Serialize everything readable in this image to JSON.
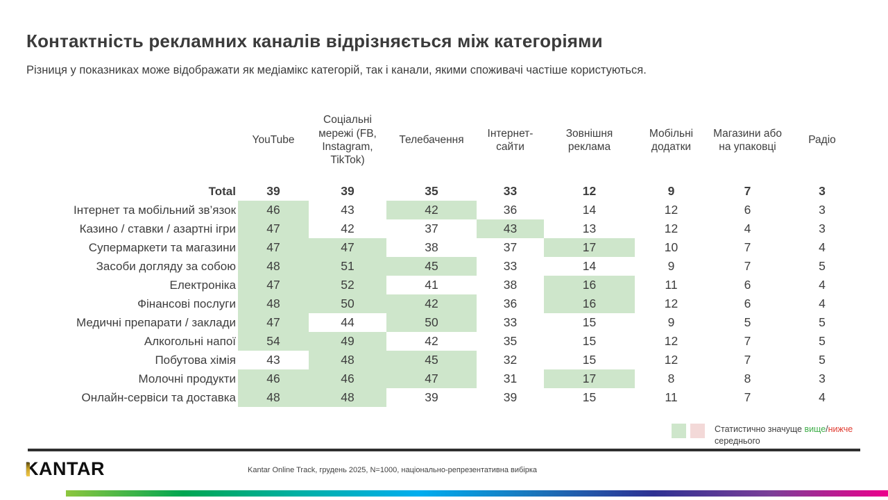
{
  "slide": {
    "title": "Контактність рекламних каналів відрізняється між категоріями",
    "subtitle": "Різниця у показниках може відображати як медіамікс категорій, так і канали, якими споживачі частіше користуються."
  },
  "chart_data": {
    "type": "table",
    "title": "Контактність рекламних каналів відрізняється між категоріями",
    "columns": [
      "YouTube",
      "Соціальні мережі (FB, Instagram, TikTok)",
      "Телебачення",
      "Інтернет-сайти",
      "Зовнішня реклама",
      "Мобільні додатки",
      "Магазини або на упаковці",
      "Радіо"
    ],
    "highlight_note": "1 = клітинка виділена зеленим (статистично значуще вище середнього)",
    "rows": [
      {
        "label": "Total",
        "bold": true,
        "values": [
          39,
          39,
          35,
          33,
          12,
          9,
          7,
          3
        ],
        "highlight": [
          0,
          0,
          0,
          0,
          0,
          0,
          0,
          0
        ]
      },
      {
        "label": "Інтернет та мобільний зв’язок",
        "bold": false,
        "values": [
          46,
          43,
          42,
          36,
          14,
          12,
          6,
          3
        ],
        "highlight": [
          1,
          0,
          1,
          0,
          0,
          0,
          0,
          0
        ]
      },
      {
        "label": "Казино / ставки / азартні ігри",
        "bold": false,
        "values": [
          47,
          42,
          37,
          43,
          13,
          12,
          4,
          3
        ],
        "highlight": [
          1,
          0,
          0,
          1,
          0,
          0,
          0,
          0
        ]
      },
      {
        "label": "Супермаркети та магазини",
        "bold": false,
        "values": [
          47,
          47,
          38,
          37,
          17,
          10,
          7,
          4
        ],
        "highlight": [
          1,
          1,
          0,
          0,
          1,
          0,
          0,
          0
        ]
      },
      {
        "label": "Засоби догляду за собою",
        "bold": false,
        "values": [
          48,
          51,
          45,
          33,
          14,
          9,
          7,
          5
        ],
        "highlight": [
          1,
          1,
          1,
          0,
          0,
          0,
          0,
          0
        ]
      },
      {
        "label": "Електроніка",
        "bold": false,
        "values": [
          47,
          52,
          41,
          38,
          16,
          11,
          6,
          4
        ],
        "highlight": [
          1,
          1,
          0,
          0,
          1,
          0,
          0,
          0
        ]
      },
      {
        "label": "Фінансові послуги",
        "bold": false,
        "values": [
          48,
          50,
          42,
          36,
          16,
          12,
          6,
          4
        ],
        "highlight": [
          1,
          1,
          1,
          0,
          1,
          0,
          0,
          0
        ]
      },
      {
        "label": "Медичні препарати / заклади",
        "bold": false,
        "values": [
          47,
          44,
          50,
          33,
          15,
          9,
          5,
          5
        ],
        "highlight": [
          1,
          0,
          1,
          0,
          0,
          0,
          0,
          0
        ]
      },
      {
        "label": "Алкогольні напої",
        "bold": false,
        "values": [
          54,
          49,
          42,
          35,
          15,
          12,
          7,
          5
        ],
        "highlight": [
          1,
          1,
          0,
          0,
          0,
          0,
          0,
          0
        ]
      },
      {
        "label": "Побутова хімія",
        "bold": false,
        "values": [
          43,
          48,
          45,
          32,
          15,
          12,
          7,
          5
        ],
        "highlight": [
          0,
          1,
          1,
          0,
          0,
          0,
          0,
          0
        ]
      },
      {
        "label": "Молочні продукти",
        "bold": false,
        "values": [
          46,
          46,
          47,
          31,
          17,
          8,
          8,
          3
        ],
        "highlight": [
          1,
          1,
          1,
          0,
          1,
          0,
          0,
          0
        ]
      },
      {
        "label": "Онлайн-сервіси та доставка",
        "bold": false,
        "values": [
          48,
          48,
          39,
          39,
          15,
          11,
          7,
          4
        ],
        "highlight": [
          1,
          1,
          0,
          0,
          0,
          0,
          0,
          0
        ]
      }
    ]
  },
  "legend": {
    "prefix": "Статистично значуще ",
    "higher": "вище",
    "slash": "/",
    "lower": "нижче",
    "suffix": " середнього"
  },
  "footer": {
    "source": "Kantar Online Track, грудень 2025, N=1000, національно-репрезентативна вибірка"
  },
  "logo": {
    "brand": "KANTAR"
  },
  "colors": {
    "green_cell": "#cee6cb",
    "pink_cell": "#f3d9d8",
    "higher_text": "#3fae49",
    "lower_text": "#e03c31",
    "divider": "#2f2f2f",
    "text_dark": "#3d3d3d",
    "logo_gold": "#c9a227"
  },
  "brand_bar": {
    "colors": [
      "#8dc63f",
      "#00a651",
      "#00b0a6",
      "#00aeef",
      "#1b75bb",
      "#2e3192",
      "#7b3f98",
      "#ec008c"
    ]
  }
}
